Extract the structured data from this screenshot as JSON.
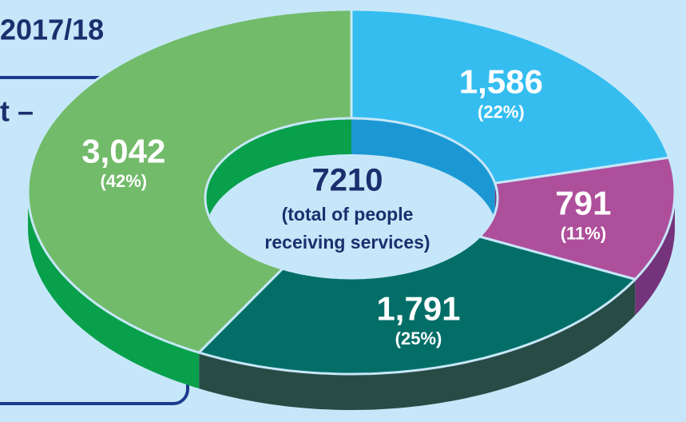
{
  "heading": "2017/18",
  "box_text": "t –",
  "chart_data": {
    "type": "donut",
    "categories": [
      null,
      null,
      null,
      null
    ],
    "values": [
      1586,
      791,
      1791,
      3042
    ],
    "value_labels": [
      "1,586",
      "791",
      "1,791",
      "3,042"
    ],
    "percent_labels": [
      "(22%)",
      "(11%)",
      "(25%)",
      "(42%)"
    ],
    "colors": [
      "#35bdf0",
      "#ae4f9c",
      "#036e67",
      "#72bb6a"
    ],
    "side_colors": [
      "#1b98d4",
      "#74337a",
      "#294b45",
      "#08a04b"
    ],
    "total": 7210,
    "center_label": [
      "(total of people",
      "receiving services)"
    ]
  }
}
